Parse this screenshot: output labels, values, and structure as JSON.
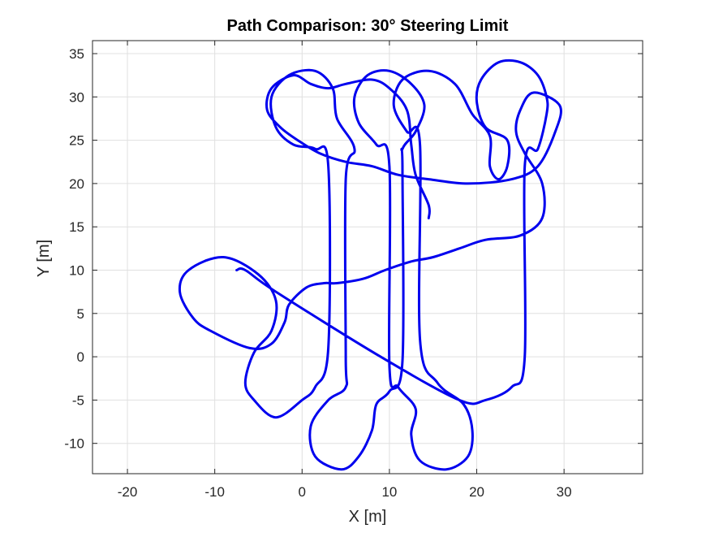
{
  "chart_data": {
    "type": "line",
    "title": "Path Comparison: 30° Steering Limit",
    "xlabel": "X [m]",
    "ylabel": "Y [m]",
    "xlim": [
      -24,
      39
    ],
    "ylim": [
      -13.5,
      36.5
    ],
    "xticks": [
      -20,
      -10,
      0,
      10,
      20,
      30
    ],
    "yticks": [
      -10,
      -5,
      0,
      5,
      10,
      15,
      20,
      25,
      30,
      35
    ],
    "grid": true,
    "color": "#0000ee",
    "series": [
      {
        "points": [
          [
            -7.5,
            10
          ],
          [
            -6.5,
            10
          ],
          [
            -3,
            7.5
          ],
          [
            9,
            0
          ],
          [
            18,
            -5
          ],
          [
            21,
            -5
          ],
          [
            24,
            -3.5
          ],
          [
            25.5,
            0
          ],
          [
            25.5,
            22
          ],
          [
            27,
            24
          ],
          [
            28,
            28
          ],
          [
            28,
            30
          ],
          [
            27,
            32.5
          ],
          [
            25,
            34
          ],
          [
            22.5,
            34
          ],
          [
            20.5,
            32
          ],
          [
            20,
            29.5
          ],
          [
            21,
            26.5
          ],
          [
            23.5,
            25
          ],
          [
            23.5,
            22
          ],
          [
            22.5,
            20.5
          ],
          [
            21.5,
            22
          ],
          [
            21.5,
            25.5
          ],
          [
            19.5,
            28
          ],
          [
            17.5,
            31.5
          ],
          [
            14.5,
            33
          ],
          [
            11.5,
            32
          ],
          [
            10.5,
            29
          ],
          [
            12,
            26
          ],
          [
            13.5,
            24.5
          ],
          [
            13.5,
            2
          ],
          [
            15.5,
            -3
          ],
          [
            18.5,
            -5.5
          ],
          [
            19.5,
            -8.5
          ],
          [
            19,
            -11.5
          ],
          [
            16.5,
            -13
          ],
          [
            13.5,
            -12
          ],
          [
            12.5,
            -9
          ],
          [
            13,
            -6
          ],
          [
            11,
            -3.5
          ],
          [
            10,
            -1
          ],
          [
            10,
            22
          ],
          [
            8.5,
            24.5
          ],
          [
            6.5,
            27
          ],
          [
            6,
            30
          ],
          [
            7.5,
            32.5
          ],
          [
            10,
            33
          ],
          [
            12.5,
            31.5
          ],
          [
            14,
            29
          ],
          [
            13,
            26
          ],
          [
            11.5,
            24
          ],
          [
            11.5,
            21.5
          ],
          [
            11.5,
            -0.5
          ],
          [
            10,
            -4
          ],
          [
            8.5,
            -5.5
          ],
          [
            8,
            -8.5
          ],
          [
            6.5,
            -11.5
          ],
          [
            4.5,
            -13
          ],
          [
            1.5,
            -11.5
          ],
          [
            1,
            -8
          ],
          [
            3,
            -5
          ],
          [
            5,
            -3.5
          ],
          [
            5,
            0
          ],
          [
            5,
            20.5
          ],
          [
            6,
            24
          ],
          [
            4,
            27.5
          ],
          [
            3.5,
            31
          ],
          [
            1.5,
            33
          ],
          [
            -1.5,
            32.5
          ],
          [
            -3.5,
            30
          ],
          [
            -3,
            26.5
          ],
          [
            -1,
            24.5
          ],
          [
            1.5,
            24
          ],
          [
            3,
            22
          ],
          [
            3,
            1
          ],
          [
            1.5,
            -3.5
          ],
          [
            0,
            -5
          ],
          [
            -3,
            -7
          ],
          [
            -5.5,
            -5
          ],
          [
            -6.5,
            -3
          ],
          [
            -5.5,
            0.5
          ],
          [
            -3.5,
            3
          ],
          [
            -3,
            6.5
          ],
          [
            -5,
            9.5
          ],
          [
            -9,
            11.5
          ],
          [
            -13,
            10
          ],
          [
            -14,
            7.5
          ],
          [
            -12.5,
            4.5
          ],
          [
            -10.5,
            3
          ],
          [
            -6,
            1
          ],
          [
            -3.5,
            1.5
          ],
          [
            -2,
            4
          ],
          [
            -1.5,
            6
          ],
          [
            0.5,
            8
          ],
          [
            2.5,
            8.5
          ],
          [
            4,
            8.5
          ],
          [
            7,
            9
          ],
          [
            9.5,
            10
          ],
          [
            12.5,
            11
          ],
          [
            15,
            11.5
          ],
          [
            18,
            12.5
          ],
          [
            21,
            13.5
          ],
          [
            25,
            14
          ],
          [
            27.5,
            16
          ],
          [
            27.5,
            20
          ],
          [
            25.5,
            23.5
          ],
          [
            24.5,
            26
          ],
          [
            25,
            28.5
          ],
          [
            26.5,
            30.5
          ],
          [
            29.5,
            29
          ],
          [
            29,
            26
          ],
          [
            27,
            22
          ],
          [
            24,
            20.5
          ],
          [
            19,
            20
          ],
          [
            14.5,
            20.5
          ],
          [
            11,
            21
          ],
          [
            8,
            22
          ],
          [
            5,
            22.5
          ],
          [
            2,
            23.5
          ],
          [
            -0.5,
            25
          ],
          [
            -2.5,
            26.5
          ],
          [
            -4,
            28.5
          ],
          [
            -3.5,
            31
          ],
          [
            -1,
            32.5
          ],
          [
            1,
            31.5
          ],
          [
            3,
            31
          ],
          [
            5,
            31.5
          ],
          [
            8,
            32
          ],
          [
            10,
            31
          ],
          [
            12,
            28.5
          ],
          [
            12.5,
            24.5
          ],
          [
            13,
            21
          ],
          [
            14.5,
            17.5
          ],
          [
            14.5,
            16
          ]
        ]
      }
    ]
  }
}
